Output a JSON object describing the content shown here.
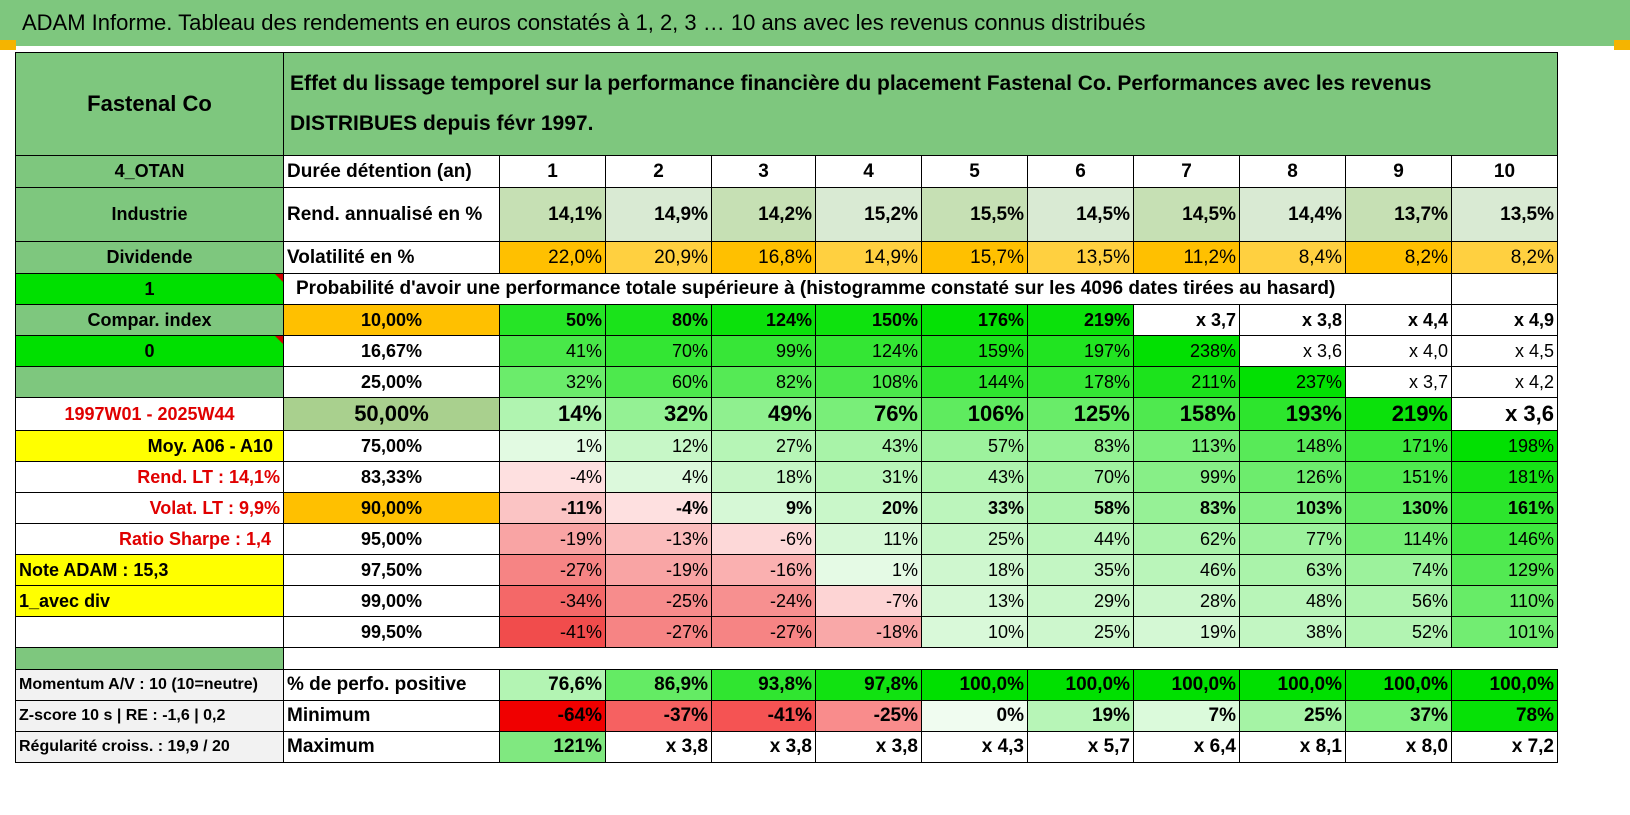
{
  "title": "ADAM Informe. Tableau des rendements en euros constatés à 1, 2, 3 … 10 ans avec les revenus connus distribués",
  "fund_name": "Fastenal Co",
  "description": "Effet du lissage temporel sur la performance financière du placement Fastenal Co. Performances avec les revenus DISTRIBUES depuis févr 1997.",
  "colors": {
    "header_green": "#7ec77e",
    "bright_green": "#00e000",
    "orange": "#ffc000",
    "yellow": "#ffff00",
    "label_red": "#e00000"
  },
  "left_labels": {
    "code": "4_OTAN",
    "sector": "Industrie",
    "distribution": "Dividende",
    "flag1": "1",
    "compar": "Compar. index",
    "flag0": "0",
    "period": "1997W01 - 2025W44",
    "moy": "Moy. A06 - A10",
    "rend_lt": "Rend. LT :    14,1%",
    "volat_lt": "Volat. LT :    9,9%",
    "sharpe": "Ratio Sharpe :     1,4",
    "note": "Note ADAM : 15,3",
    "avec_div": "1_avec div"
  },
  "stats": {
    "durations_label": "Durée détention (an)",
    "durations": [
      "1",
      "2",
      "3",
      "4",
      "5",
      "6",
      "7",
      "8",
      "9",
      "10"
    ],
    "rend_label": "Rend. annualisé en %",
    "rend": [
      "14,1%",
      "14,9%",
      "14,2%",
      "15,2%",
      "15,5%",
      "14,5%",
      "14,5%",
      "14,4%",
      "13,7%",
      "13,5%"
    ],
    "vol_label": "Volatilité en %",
    "vol": [
      "22,0%",
      "20,9%",
      "16,8%",
      "14,9%",
      "15,7%",
      "13,5%",
      "11,2%",
      "8,4%",
      "8,2%",
      "8,2%"
    ]
  },
  "prob_header": "Probabilité d'avoir une performance totale supérieure à (histogramme constaté sur les 4096 dates tirées au hasard)",
  "prob_rows": [
    {
      "q": "10,00%",
      "v": [
        "50%",
        "80%",
        "124%",
        "150%",
        "176%",
        "219%",
        "x 3,7",
        "x 3,8",
        "x 4,4",
        "x 4,9"
      ]
    },
    {
      "q": "16,67%",
      "v": [
        "41%",
        "70%",
        "99%",
        "124%",
        "159%",
        "197%",
        "238%",
        "x 3,6",
        "x 4,0",
        "x 4,5"
      ]
    },
    {
      "q": "25,00%",
      "v": [
        "32%",
        "60%",
        "82%",
        "108%",
        "144%",
        "178%",
        "211%",
        "237%",
        "x 3,7",
        "x 4,2"
      ]
    },
    {
      "q": "50,00%",
      "v": [
        "14%",
        "32%",
        "49%",
        "76%",
        "106%",
        "125%",
        "158%",
        "193%",
        "219%",
        "x 3,6"
      ]
    },
    {
      "q": "75,00%",
      "v": [
        "1%",
        "12%",
        "27%",
        "43%",
        "57%",
        "83%",
        "113%",
        "148%",
        "171%",
        "198%"
      ]
    },
    {
      "q": "83,33%",
      "v": [
        "-4%",
        "4%",
        "18%",
        "31%",
        "43%",
        "70%",
        "99%",
        "126%",
        "151%",
        "181%"
      ]
    },
    {
      "q": "90,00%",
      "v": [
        "-11%",
        "-4%",
        "9%",
        "20%",
        "33%",
        "58%",
        "83%",
        "103%",
        "130%",
        "161%"
      ]
    },
    {
      "q": "95,00%",
      "v": [
        "-19%",
        "-13%",
        "-6%",
        "11%",
        "25%",
        "44%",
        "62%",
        "77%",
        "114%",
        "146%"
      ]
    },
    {
      "q": "97,50%",
      "v": [
        "-27%",
        "-19%",
        "-16%",
        "1%",
        "18%",
        "35%",
        "46%",
        "63%",
        "74%",
        "129%"
      ]
    },
    {
      "q": "99,00%",
      "v": [
        "-34%",
        "-25%",
        "-24%",
        "-7%",
        "13%",
        "29%",
        "28%",
        "48%",
        "56%",
        "110%"
      ]
    },
    {
      "q": "99,50%",
      "v": [
        "-41%",
        "-27%",
        "-27%",
        "-18%",
        "10%",
        "25%",
        "19%",
        "38%",
        "52%",
        "101%"
      ]
    }
  ],
  "bottom": {
    "momentum": "Momentum A/V : 10 (10=neutre)",
    "zscore": "Z-score 10 s | RE : -1,6 | 0,2",
    "regularite": "Régularité croiss. : 19,9 / 20",
    "pos_label": "% de perfo. positive",
    "pos": [
      "76,6%",
      "86,9%",
      "93,8%",
      "97,8%",
      "100,0%",
      "100,0%",
      "100,0%",
      "100,0%",
      "100,0%",
      "100,0%"
    ],
    "min_label": "Minimum",
    "min": [
      "-64%",
      "-37%",
      "-41%",
      "-25%",
      "0%",
      "19%",
      "7%",
      "25%",
      "37%",
      "78%"
    ],
    "max_label": "Maximum",
    "max": [
      "121%",
      "x 3,8",
      "x 3,8",
      "x 3,8",
      "x 4,3",
      "x 5,7",
      "x 6,4",
      "x 8,1",
      "x 8,0",
      "x 7,2"
    ]
  }
}
